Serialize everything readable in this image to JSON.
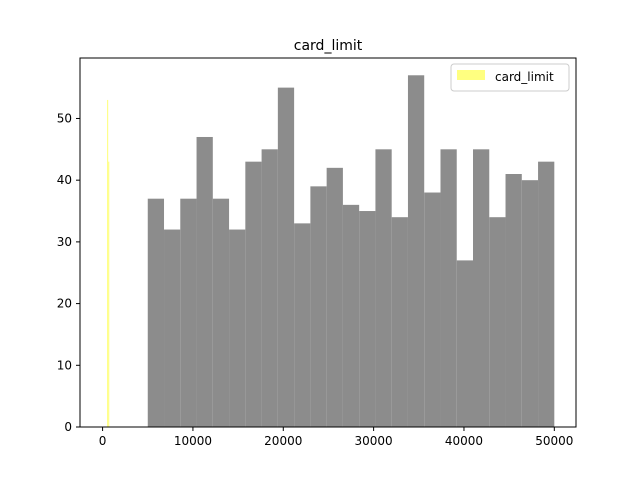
{
  "chart_data": {
    "type": "bar",
    "title": "card_limit",
    "xlabel": "",
    "ylabel": "",
    "xlim": [
      -2500,
      52400
    ],
    "ylim": [
      0,
      59.8
    ],
    "xticks": [
      0,
      10000,
      20000,
      30000,
      40000,
      50000
    ],
    "xtick_labels": [
      "0",
      "10000",
      "20000",
      "30000",
      "40000",
      "50000"
    ],
    "yticks": [
      0,
      10,
      20,
      30,
      40,
      50
    ],
    "ytick_labels": [
      "0",
      "10",
      "20",
      "30",
      "40",
      "50"
    ],
    "grid": false,
    "legend_position": "top-right",
    "legend_entries": [
      {
        "label": "card_limit",
        "color": "#ffff80"
      }
    ],
    "series": [
      {
        "name": "",
        "color": "#8c8c8c",
        "bin_edges": [
          5000,
          6800,
          8600,
          10400,
          12200,
          14000,
          15800,
          17600,
          19400,
          21200,
          23000,
          24800,
          26600,
          28400,
          30200,
          32000,
          33800,
          35600,
          37400,
          39200,
          41000,
          42800,
          44600,
          46400,
          48200,
          50000
        ],
        "values": [
          37,
          32,
          37,
          47,
          37,
          32,
          43,
          45,
          55,
          33,
          39,
          42,
          36,
          35,
          45,
          34,
          57,
          38,
          45,
          27,
          45,
          34,
          41,
          40,
          43
        ]
      },
      {
        "name": "card_limit",
        "color": "#ffff80",
        "bin_edges": [
          500,
          620,
          740
        ],
        "values": [
          53,
          43
        ]
      }
    ]
  }
}
